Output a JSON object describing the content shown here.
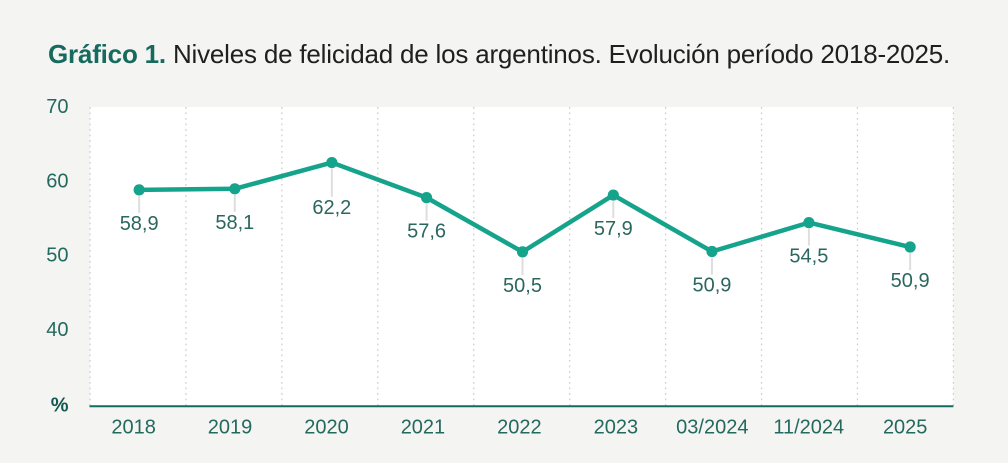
{
  "title": {
    "accent": "Gráfico 1.",
    "body": " Niveles de felicidad de los argentinos. Evolución período 2018-2025."
  },
  "chart_data": {
    "type": "line",
    "title": "Gráfico 1. Niveles de felicidad de los argentinos. Evolución período 2018-2025.",
    "categories": [
      "2018",
      "2019",
      "2020",
      "2021",
      "2022",
      "2023",
      "03/2024",
      "11/2024",
      "2025"
    ],
    "series": [
      {
        "name": "Niveles de felicidad de los argentinos",
        "values": [
          58.9,
          58.1,
          62.2,
          57.6,
          50.5,
          57.9,
          50.9,
          54.5,
          50.9
        ]
      }
    ],
    "data_labels": [
      "58,9",
      "58,1",
      "62,2",
      "57,6",
      "50,5",
      "57,9",
      "50,9",
      "54,5",
      "50,9"
    ],
    "xlabel": "",
    "ylabel": "%",
    "yticks": [
      70,
      60,
      50,
      40
    ],
    "ylim": [
      30,
      70
    ],
    "grid": "vertical-dotted",
    "legend": "none"
  },
  "colors": {
    "background": "#f4f4f2",
    "plot_background": "#ffffff",
    "line": "#16a38b",
    "marker": "#16a38b",
    "title_accent": "#166a5e",
    "title_text": "#1f1f1f",
    "axis_tick_text": "#24695e",
    "data_label_text": "#2b675e",
    "percent_label": "#14594f",
    "gridline": "#cfcfcf",
    "axis_line": "#156b5e",
    "leader_line": "#dedede"
  }
}
